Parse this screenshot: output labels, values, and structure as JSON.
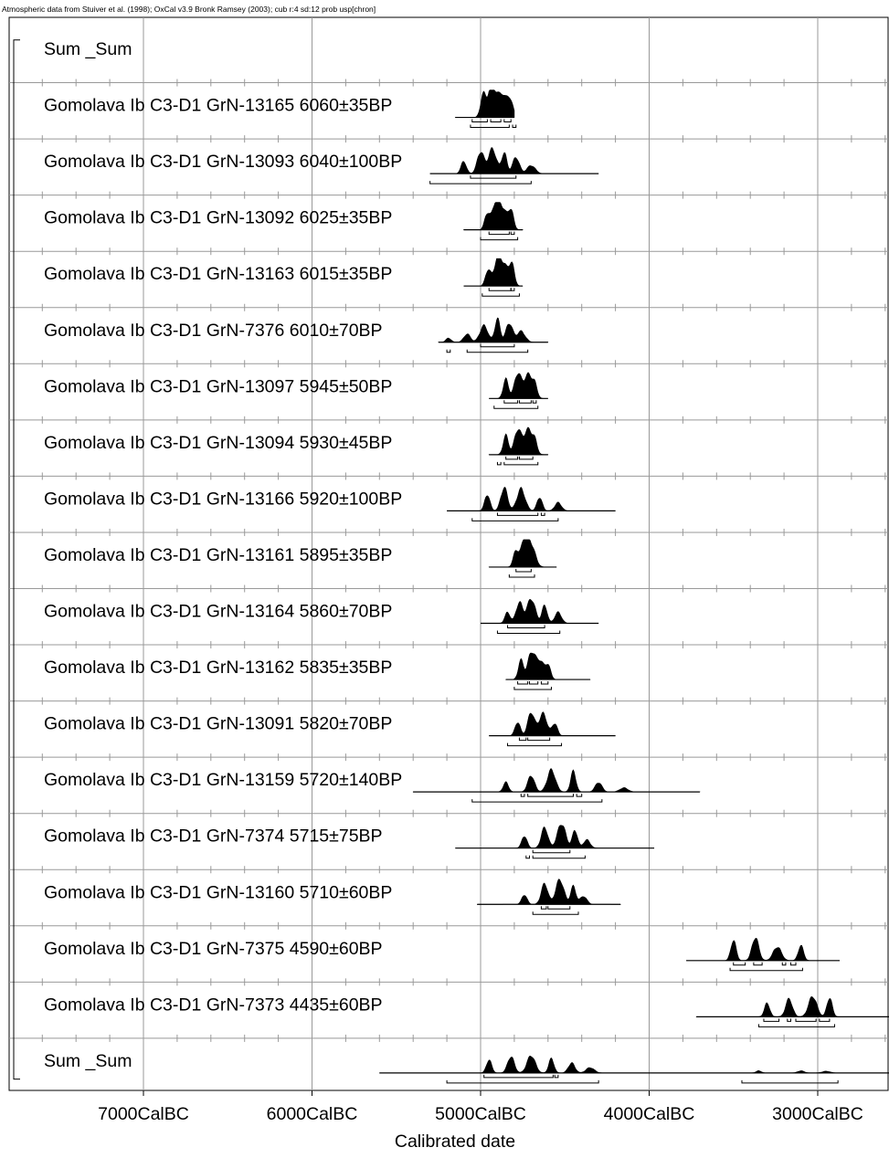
{
  "header": "Atmospheric data from Stuiver et al. (1998); OxCal v3.9 Bronk Ramsey (2003); cub r:4 sd:12 prob usp[chron]",
  "chart_data": {
    "type": "area",
    "title": "",
    "xlabel": "Calibrated date",
    "ylabel": "",
    "xlim": [
      7700,
      2300
    ],
    "x_direction": "older-left",
    "grid": true,
    "xticks": [
      {
        "value": 7000,
        "label": "7000CalBC"
      },
      {
        "value": 6000,
        "label": "6000CalBC"
      },
      {
        "value": 5000,
        "label": "5000CalBC"
      },
      {
        "value": 4000,
        "label": "4000CalBC"
      },
      {
        "value": 3000,
        "label": "3000CalBC"
      }
    ],
    "rows": [
      {
        "label": "Sum _Sum",
        "kind": "sum-header"
      },
      {
        "label": "Gomolava Ib C3-D1 GrN-13165  6060±35BP",
        "bp": 6060,
        "err": 35,
        "kind": "date",
        "peaks": [
          [
            4985,
            0.8
          ],
          [
            4940,
            0.9
          ],
          [
            4905,
            0.7
          ],
          [
            4870,
            0.55
          ],
          [
            4830,
            0.75
          ]
        ],
        "range": [
          5150,
          4800
        ],
        "hpd68": [
          [
            5050,
            4960
          ],
          [
            4940,
            4880
          ],
          [
            4860,
            4820
          ]
        ],
        "hpd95": [
          [
            5060,
            4830
          ],
          [
            4810,
            4790
          ]
        ]
      },
      {
        "label": "Gomolava Ib C3-D1 GrN-13093  6040±100BP",
        "bp": 6040,
        "err": 100,
        "kind": "date",
        "peaks": [
          [
            5100,
            0.45
          ],
          [
            5000,
            0.8
          ],
          [
            4930,
            0.9
          ],
          [
            4860,
            0.75
          ],
          [
            4790,
            0.6
          ],
          [
            4700,
            0.3
          ]
        ],
        "range": [
          5300,
          4300
        ],
        "hpd68": [
          [
            5060,
            4790
          ]
        ],
        "hpd95": [
          [
            5300,
            4700
          ]
        ]
      },
      {
        "label": "Gomolava Ib C3-D1 GrN-13092  6025±35BP",
        "bp": 6025,
        "err": 35,
        "kind": "date",
        "peaks": [
          [
            4960,
            0.6
          ],
          [
            4910,
            0.95
          ],
          [
            4870,
            0.75
          ],
          [
            4820,
            0.7
          ]
        ],
        "range": [
          5100,
          4750
        ],
        "hpd68": [
          [
            4950,
            4830
          ],
          [
            4820,
            4800
          ]
        ],
        "hpd95": [
          [
            5000,
            4780
          ]
        ]
      },
      {
        "label": "Gomolava Ib C3-D1 GrN-13163  6015±35BP",
        "bp": 6015,
        "err": 35,
        "kind": "date",
        "peaks": [
          [
            4955,
            0.6
          ],
          [
            4900,
            0.95
          ],
          [
            4860,
            0.7
          ],
          [
            4815,
            0.75
          ]
        ],
        "range": [
          5100,
          4750
        ],
        "hpd68": [
          [
            4950,
            4820
          ],
          [
            4820,
            4800
          ]
        ],
        "hpd95": [
          [
            4990,
            4770
          ]
        ]
      },
      {
        "label": "Gomolava Ib C3-D1 GrN-7376  6010±70BP",
        "bp": 6010,
        "err": 70,
        "kind": "date",
        "peaks": [
          [
            5190,
            0.15
          ],
          [
            5080,
            0.3
          ],
          [
            4980,
            0.6
          ],
          [
            4900,
            0.85
          ],
          [
            4830,
            0.7
          ],
          [
            4760,
            0.4
          ]
        ],
        "range": [
          5250,
          4600
        ],
        "hpd68": [
          [
            5000,
            4800
          ]
        ],
        "hpd95": [
          [
            5200,
            5180
          ],
          [
            5080,
            4720
          ]
        ]
      },
      {
        "label": "Gomolava Ib C3-D1 GrN-13097  5945±50BP",
        "bp": 5945,
        "err": 50,
        "kind": "date",
        "peaks": [
          [
            4850,
            0.7
          ],
          [
            4780,
            0.9
          ],
          [
            4720,
            0.85
          ],
          [
            4680,
            0.45
          ]
        ],
        "range": [
          4950,
          4600
        ],
        "hpd68": [
          [
            4860,
            4780
          ],
          [
            4770,
            4700
          ],
          [
            4690,
            4670
          ]
        ],
        "hpd95": [
          [
            4920,
            4660
          ]
        ]
      },
      {
        "label": "Gomolava Ib C3-D1 GrN-13094  5930±45BP",
        "bp": 5930,
        "err": 45,
        "kind": "date",
        "peaks": [
          [
            4850,
            0.7
          ],
          [
            4780,
            0.9
          ],
          [
            4720,
            0.9
          ],
          [
            4680,
            0.45
          ]
        ],
        "range": [
          4950,
          4600
        ],
        "hpd68": [
          [
            4850,
            4780
          ],
          [
            4770,
            4690
          ]
        ],
        "hpd95": [
          [
            4900,
            4880
          ],
          [
            4860,
            4660
          ]
        ]
      },
      {
        "label": "Gomolava Ib C3-D1 GrN-13166  5920±100BP",
        "bp": 5920,
        "err": 100,
        "kind": "date",
        "peaks": [
          [
            4960,
            0.6
          ],
          [
            4860,
            0.85
          ],
          [
            4760,
            0.8
          ],
          [
            4650,
            0.5
          ],
          [
            4540,
            0.3
          ]
        ],
        "range": [
          5200,
          4200
        ],
        "hpd68": [
          [
            4900,
            4660
          ],
          [
            4640,
            4620
          ]
        ],
        "hpd95": [
          [
            5050,
            4540
          ]
        ]
      },
      {
        "label": "Gomolava Ib C3-D1 GrN-13161  5895±35BP",
        "bp": 5895,
        "err": 35,
        "kind": "date",
        "peaks": [
          [
            4790,
            0.6
          ],
          [
            4740,
            0.95
          ],
          [
            4700,
            0.8
          ]
        ],
        "range": [
          4950,
          4550
        ],
        "hpd68": [
          [
            4790,
            4700
          ]
        ],
        "hpd95": [
          [
            4830,
            4680
          ]
        ]
      },
      {
        "label": "Gomolava Ib C3-D1 GrN-13164  5860±70BP",
        "bp": 5860,
        "err": 70,
        "kind": "date",
        "peaks": [
          [
            4840,
            0.4
          ],
          [
            4770,
            0.75
          ],
          [
            4700,
            0.9
          ],
          [
            4620,
            0.65
          ],
          [
            4540,
            0.4
          ]
        ],
        "range": [
          5000,
          4300
        ],
        "hpd68": [
          [
            4840,
            4620
          ]
        ],
        "hpd95": [
          [
            4900,
            4530
          ]
        ]
      },
      {
        "label": "Gomolava Ib C3-D1 GrN-13162  5835±35BP",
        "bp": 5835,
        "err": 35,
        "kind": "date",
        "peaks": [
          [
            4760,
            0.7
          ],
          [
            4700,
            0.95
          ],
          [
            4650,
            0.7
          ],
          [
            4600,
            0.5
          ]
        ],
        "range": [
          4850,
          4350
        ],
        "hpd68": [
          [
            4780,
            4720
          ],
          [
            4710,
            4660
          ],
          [
            4640,
            4600
          ]
        ],
        "hpd95": [
          [
            4800,
            4580
          ]
        ]
      },
      {
        "label": "Gomolava Ib C3-D1 GrN-13091  5820±70BP",
        "bp": 5820,
        "err": 70,
        "kind": "date",
        "peaks": [
          [
            4780,
            0.5
          ],
          [
            4700,
            0.85
          ],
          [
            4630,
            0.8
          ],
          [
            4560,
            0.45
          ]
        ],
        "range": [
          4950,
          4200
        ],
        "hpd68": [
          [
            4770,
            4730
          ],
          [
            4720,
            4590
          ]
        ],
        "hpd95": [
          [
            4840,
            4520
          ]
        ]
      },
      {
        "label": "Gomolava Ib C3-D1 GrN-13159  5720±140BP",
        "bp": 5720,
        "err": 140,
        "kind": "date",
        "peaks": [
          [
            4850,
            0.35
          ],
          [
            4700,
            0.6
          ],
          [
            4580,
            0.8
          ],
          [
            4450,
            0.75
          ],
          [
            4300,
            0.35
          ],
          [
            4150,
            0.15
          ]
        ],
        "range": [
          5400,
          3700
        ],
        "hpd68": [
          [
            4760,
            4740
          ],
          [
            4720,
            4450
          ],
          [
            4430,
            4400
          ]
        ],
        "hpd95": [
          [
            5050,
            4280
          ]
        ]
      },
      {
        "label": "Gomolava Ib C3-D1 GrN-7374  5715±75BP",
        "bp": 5715,
        "err": 75,
        "kind": "date",
        "peaks": [
          [
            4740,
            0.45
          ],
          [
            4620,
            0.75
          ],
          [
            4520,
            0.9
          ],
          [
            4440,
            0.65
          ],
          [
            4370,
            0.3
          ]
        ],
        "range": [
          5150,
          3970
        ],
        "hpd68": [
          [
            4690,
            4470
          ]
        ],
        "hpd95": [
          [
            4730,
            4710
          ],
          [
            4690,
            4380
          ]
        ]
      },
      {
        "label": "Gomolava Ib C3-D1 GrN-13160  5710±60BP",
        "bp": 5710,
        "err": 60,
        "kind": "date",
        "peaks": [
          [
            4740,
            0.35
          ],
          [
            4620,
            0.75
          ],
          [
            4530,
            0.9
          ],
          [
            4450,
            0.65
          ],
          [
            4390,
            0.3
          ]
        ],
        "range": [
          5020,
          4170
        ],
        "hpd68": [
          [
            4640,
            4610
          ],
          [
            4600,
            4470
          ]
        ],
        "hpd95": [
          [
            4690,
            4420
          ]
        ]
      },
      {
        "label": "Gomolava Ib C3-D1 GrN-7375  4590±60BP",
        "bp": 4590,
        "err": 60,
        "kind": "date",
        "peaks": [
          [
            3500,
            0.75
          ],
          [
            3370,
            0.85
          ],
          [
            3240,
            0.5
          ],
          [
            3100,
            0.55
          ]
        ],
        "range": [
          3780,
          2870
        ],
        "hpd68": [
          [
            3500,
            3430
          ],
          [
            3380,
            3330
          ],
          [
            3210,
            3190
          ],
          [
            3160,
            3130
          ]
        ],
        "hpd95": [
          [
            3520,
            3090
          ]
        ]
      },
      {
        "label": "Gomolava Ib C3-D1 GrN-7373  4435±60BP",
        "bp": 4435,
        "err": 60,
        "kind": "date",
        "peaks": [
          [
            3300,
            0.5
          ],
          [
            3170,
            0.65
          ],
          [
            3030,
            0.75
          ],
          [
            2930,
            0.7
          ]
        ],
        "range": [
          3720,
          2450
        ],
        "hpd68": [
          [
            3320,
            3230
          ],
          [
            3180,
            3160
          ],
          [
            3130,
            3010
          ],
          [
            2990,
            2930
          ]
        ],
        "hpd95": [
          [
            3350,
            2900
          ]
        ]
      },
      {
        "label": "Sum _Sum",
        "kind": "sum",
        "peaks": [
          [
            4950,
            0.6
          ],
          [
            4820,
            0.75
          ],
          [
            4700,
            0.8
          ],
          [
            4580,
            0.65
          ],
          [
            4460,
            0.45
          ],
          [
            4350,
            0.25
          ],
          [
            3350,
            0.1
          ],
          [
            3100,
            0.1
          ],
          [
            2950,
            0.08
          ]
        ],
        "range": [
          5600,
          2300
        ],
        "hpd68": [
          [
            4980,
            4570
          ],
          [
            4560,
            4540
          ]
        ],
        "hpd95": [
          [
            5200,
            4300
          ],
          [
            3450,
            2880
          ]
        ]
      }
    ]
  }
}
